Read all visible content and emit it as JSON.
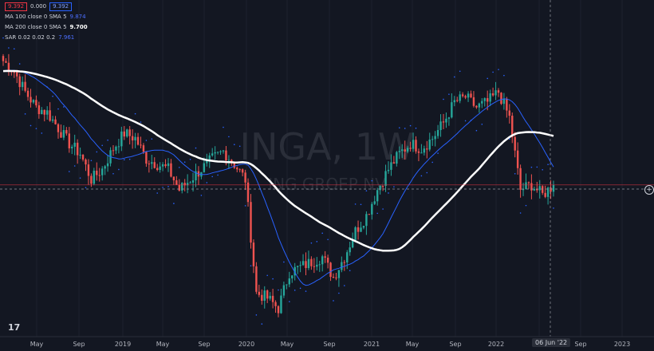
{
  "legend": {
    "price_value": "9.392",
    "change_value": "0.000",
    "price_value_2": "9.392",
    "ma100_label": "MA 100 close 0 SMA 5",
    "ma100_value": "9.874",
    "ma200_label": "MA 200 close 0 SMA 5",
    "ma200_value": "9.700",
    "sar_label": "SAR 0.02 0.02 0.2",
    "sar_value": "7.961"
  },
  "watermark": {
    "symbol": "INGA, 1W",
    "name": "ING GROEP NV"
  },
  "date_badge": "06 Jun '22",
  "colors": {
    "background": "#131722",
    "up": "#26a69a",
    "down": "#ef5350",
    "ma100": "#2962ff",
    "ma200": "#ffffff",
    "sar": "#2962ff",
    "price_line": "#f23645"
  },
  "chart_data": {
    "type": "candlestick",
    "interval": "1W",
    "x_ticks": [
      "May",
      "Sep",
      "2019",
      "May",
      "Sep",
      "2020",
      "May",
      "Sep",
      "2021",
      "May",
      "Sep",
      "2022",
      "06 Jun '22",
      "Sep",
      "2023"
    ],
    "series": [
      {
        "name": "INGA",
        "approx_close": [
          [
            "2018-04",
            14.2
          ],
          [
            "2018-05",
            13.8
          ],
          [
            "2018-06",
            13.0
          ],
          [
            "2018-07",
            12.4
          ],
          [
            "2018-08",
            12.2
          ],
          [
            "2018-09",
            11.6
          ],
          [
            "2018-10",
            11.0
          ],
          [
            "2018-11",
            10.6
          ],
          [
            "2018-12",
            9.6
          ],
          [
            "2019-01",
            10.0
          ],
          [
            "2019-02",
            10.8
          ],
          [
            "2019-03",
            11.4
          ],
          [
            "2019-04",
            11.2
          ],
          [
            "2019-05",
            10.4
          ],
          [
            "2019-06",
            10.2
          ],
          [
            "2019-07",
            10.0
          ],
          [
            "2019-08",
            9.2
          ],
          [
            "2019-09",
            9.6
          ],
          [
            "2019-10",
            10.0
          ],
          [
            "2019-11",
            10.4
          ],
          [
            "2019-12",
            10.7
          ],
          [
            "2020-01",
            10.2
          ],
          [
            "2020-02",
            9.6
          ],
          [
            "2020-03",
            5.2
          ],
          [
            "2020-04",
            5.0
          ],
          [
            "2020-05",
            4.6
          ],
          [
            "2020-06",
            6.0
          ],
          [
            "2020-07",
            6.2
          ],
          [
            "2020-08",
            6.4
          ],
          [
            "2020-09",
            6.6
          ],
          [
            "2020-10",
            5.8
          ],
          [
            "2020-11",
            6.6
          ],
          [
            "2020-12",
            7.6
          ],
          [
            "2021-01",
            8.2
          ],
          [
            "2021-02",
            9.2
          ],
          [
            "2021-03",
            10.0
          ],
          [
            "2021-04",
            10.6
          ],
          [
            "2021-05",
            11.0
          ],
          [
            "2021-06",
            10.8
          ],
          [
            "2021-07",
            11.2
          ],
          [
            "2021-08",
            11.8
          ],
          [
            "2021-09",
            12.6
          ],
          [
            "2021-10",
            12.8
          ],
          [
            "2021-11",
            12.4
          ],
          [
            "2021-12",
            12.6
          ],
          [
            "2022-01",
            13.0
          ],
          [
            "2022-02",
            12.0
          ],
          [
            "2022-03",
            9.2
          ],
          [
            "2022-04",
            9.4
          ],
          [
            "2022-05",
            9.0
          ],
          [
            "2022-06",
            9.39
          ]
        ]
      }
    ]
  }
}
